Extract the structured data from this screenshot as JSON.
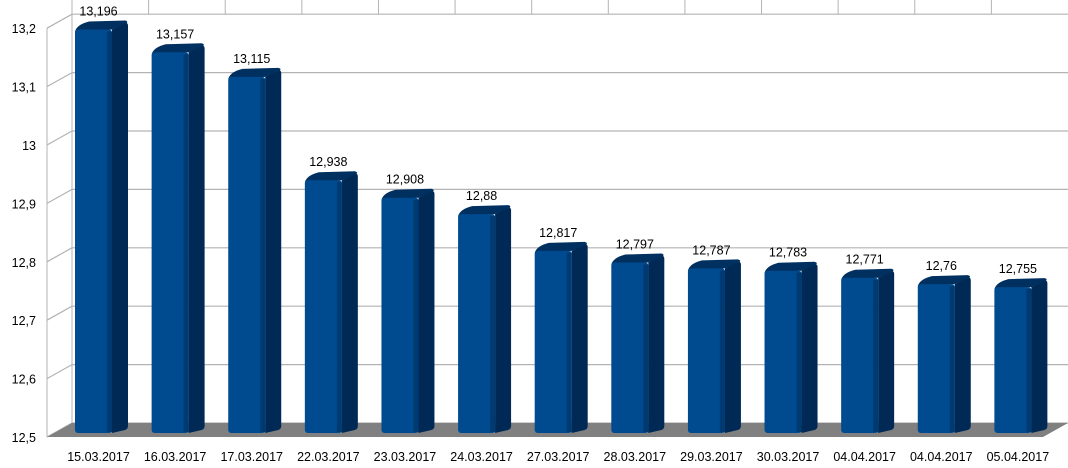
{
  "chart_data": {
    "type": "bar",
    "style": "3d-column",
    "categories": [
      "15.03.2017",
      "16.03.2017",
      "17.03.2017",
      "22.03.2017",
      "23.03.2017",
      "24.03.2017",
      "27.03.2017",
      "28.03.2017",
      "29.03.2017",
      "30.03.2017",
      "04.04.2017",
      "04.04.2017",
      "05.04.2017"
    ],
    "values": [
      13.196,
      13.157,
      13.115,
      12.938,
      12.908,
      12.88,
      12.817,
      12.797,
      12.787,
      12.783,
      12.771,
      12.76,
      12.755
    ],
    "data_labels": [
      "13,196",
      "13,157",
      "13,115",
      "12,938",
      "12,908",
      "12,88",
      "12,817",
      "12,797",
      "12,787",
      "12,783",
      "12,771",
      "12,76",
      "12,755"
    ],
    "yticks": [
      "12,5",
      "12,6",
      "12,7",
      "12,8",
      "12,9",
      "13",
      "13,1",
      "13,2"
    ],
    "ylim": [
      12.5,
      13.2
    ],
    "grid": true,
    "title": "",
    "xlabel": "",
    "ylabel": "",
    "colors": {
      "bar_front": "#004a8f",
      "bar_side": "#002a55",
      "floor": "#808080",
      "grid": "#b3b3b3"
    }
  }
}
